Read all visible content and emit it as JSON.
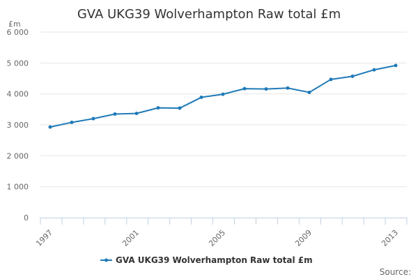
{
  "chart_data": {
    "type": "line",
    "title": "GVA UKG39 Wolverhampton Raw total £m",
    "ylabel": "£m",
    "xlabel": "",
    "x": [
      1997,
      1998,
      1999,
      2000,
      2001,
      2002,
      2003,
      2004,
      2005,
      2006,
      2007,
      2008,
      2009,
      2010,
      2011,
      2012,
      2013
    ],
    "x_tick_labels": [
      "1997",
      "2001",
      "2005",
      "2009",
      "2013"
    ],
    "y_tick_labels": [
      "0",
      "1 000",
      "2 000",
      "3 000",
      "4 000",
      "5 000",
      "6 000"
    ],
    "xlim": [
      1997,
      2013
    ],
    "ylim": [
      0,
      6000
    ],
    "grid": "horizontal",
    "legend_position": "bottom",
    "series": [
      {
        "name": "GVA UKG39 Wolverhampton Raw total £m",
        "color": "#1f7ab8",
        "values": [
          2930,
          3080,
          3200,
          3350,
          3370,
          3550,
          3540,
          3890,
          3990,
          4170,
          4160,
          4190,
          4050,
          4470,
          4570,
          4780,
          4920
        ]
      }
    ],
    "source_label": "Source:"
  }
}
